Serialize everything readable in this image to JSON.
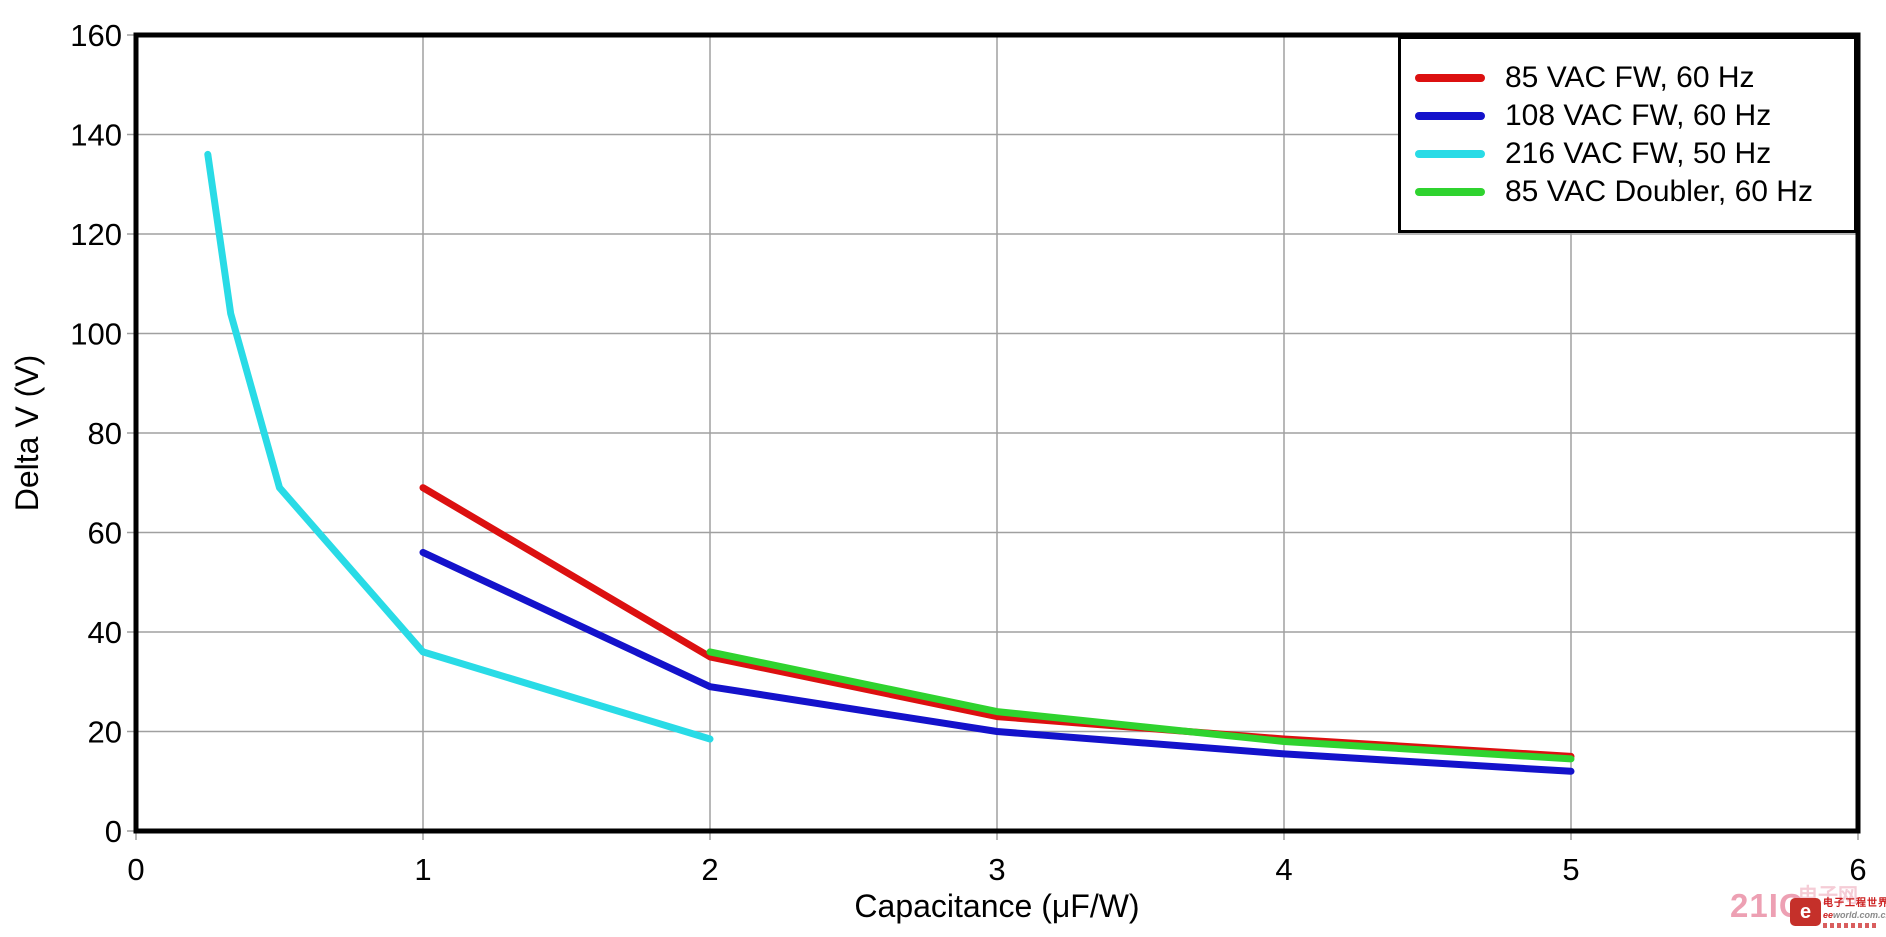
{
  "chart_data": {
    "type": "line",
    "title": "",
    "xlabel": "Capacitance (μF/W)",
    "ylabel": "Delta V (V)",
    "xlim": [
      0,
      6
    ],
    "ylim": [
      0,
      160
    ],
    "x_ticks": [
      0,
      1,
      2,
      3,
      4,
      5,
      6
    ],
    "y_ticks": [
      0,
      20,
      40,
      60,
      80,
      100,
      120,
      140,
      160
    ],
    "grid": true,
    "legend_position": "top-right",
    "series": [
      {
        "name": "85 VAC FW, 60 Hz",
        "color": "#dc1010",
        "points": [
          [
            1,
            69
          ],
          [
            2,
            35
          ],
          [
            3,
            23
          ],
          [
            4,
            18.5
          ],
          [
            5,
            15
          ]
        ]
      },
      {
        "name": "108 VAC FW, 60 Hz",
        "color": "#1412cb",
        "points": [
          [
            1,
            56
          ],
          [
            2,
            29
          ],
          [
            3,
            20
          ],
          [
            4,
            15.5
          ],
          [
            5,
            12
          ]
        ]
      },
      {
        "name": "216 VAC FW, 50 Hz",
        "color": "#29dbe6",
        "points": [
          [
            0.25,
            136
          ],
          [
            0.33,
            104
          ],
          [
            0.5,
            69
          ],
          [
            1,
            36
          ],
          [
            2,
            18.5
          ]
        ]
      },
      {
        "name": "85 VAC Doubler, 60 Hz",
        "color": "#2fd32f",
        "points": [
          [
            2,
            36
          ],
          [
            3,
            24
          ],
          [
            4,
            18
          ],
          [
            5,
            14.5
          ]
        ]
      }
    ]
  },
  "colors": {
    "grid": "#a0a0a0",
    "axis": "#000000",
    "background": "#ffffff",
    "watermark_pink": "#de5274",
    "watermark_red": "#cc1f1f"
  },
  "watermark": {
    "brand": "21IC",
    "brand_suffix": "电子网",
    "site_name": "电子工程世界",
    "site_url_bold": "ee",
    "site_url_rest": "world.com.cn",
    "logo_letter": "e"
  }
}
